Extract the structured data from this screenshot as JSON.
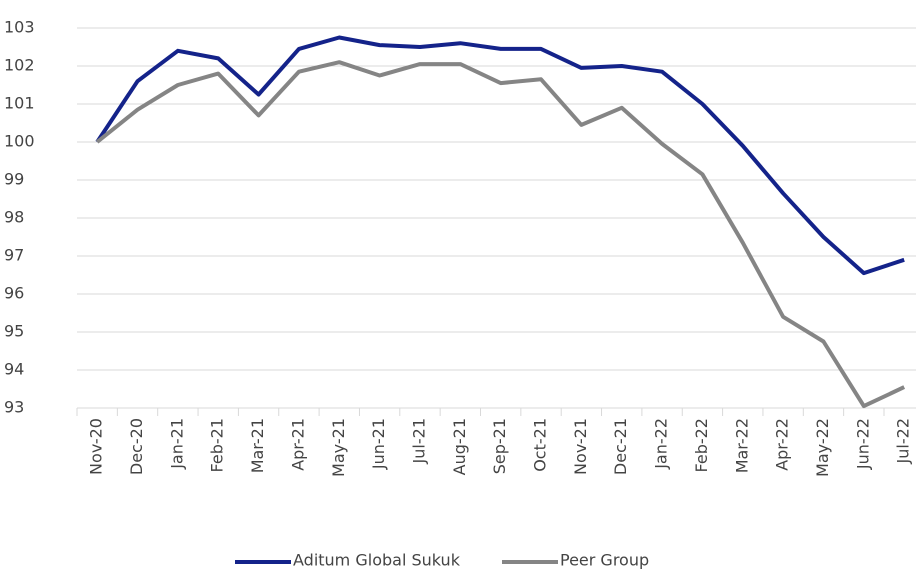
{
  "chart_data": {
    "type": "line",
    "categories": [
      "Nov-20",
      "Dec-20",
      "Jan-21",
      "Feb-21",
      "Mar-21",
      "Apr-21",
      "May-21",
      "Jun-21",
      "Jul-21",
      "Aug-21",
      "Sep-21",
      "Oct-21",
      "Nov-21",
      "Dec-21",
      "Jan-22",
      "Feb-22",
      "Mar-22",
      "Apr-22",
      "May-22",
      "Jun-22",
      "Jul-22"
    ],
    "series": [
      {
        "name": "Aditum Global Sukuk",
        "color": "#14238a",
        "values": [
          100,
          101.6,
          102.4,
          102.2,
          101.25,
          102.45,
          102.75,
          102.55,
          102.5,
          102.6,
          102.45,
          102.45,
          101.95,
          102.0,
          101.85,
          101.0,
          99.9,
          98.65,
          97.5,
          96.55,
          96.9
        ]
      },
      {
        "name": "Peer Group",
        "color": "#858585",
        "values": [
          100,
          100.85,
          101.5,
          101.8,
          100.7,
          101.85,
          102.1,
          101.75,
          102.05,
          102.05,
          101.55,
          101.65,
          100.45,
          100.9,
          99.95,
          99.15,
          97.35,
          95.4,
          94.75,
          93.05,
          93.55
        ]
      }
    ],
    "ylim": [
      93,
      103
    ],
    "yticks": [
      93,
      94,
      95,
      96,
      97,
      98,
      99,
      100,
      101,
      102,
      103
    ],
    "grid": true,
    "legend": "bottom"
  }
}
